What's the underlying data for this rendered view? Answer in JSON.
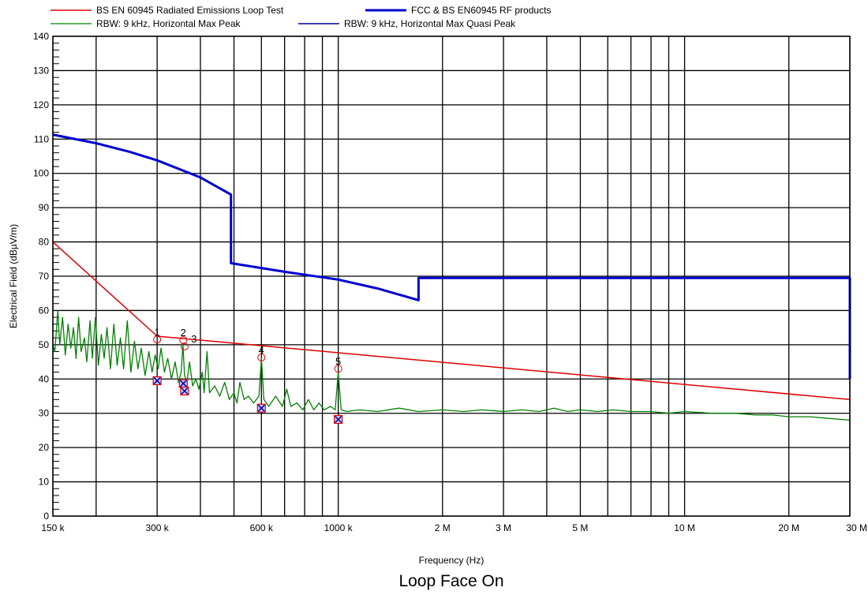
{
  "chart_data": {
    "type": "line",
    "title": "Loop Face On",
    "xlabel": "Frequency (Hz)",
    "ylabel": "Electrical Field (dBµV/m)",
    "xscale": "log",
    "xlim": [
      150000,
      30000000
    ],
    "ylim": [
      0,
      140
    ],
    "grid": true,
    "legend_position": "top",
    "x_ticks": [
      {
        "value": 150000,
        "label": "150 k"
      },
      {
        "value": 300000,
        "label": "300 k"
      },
      {
        "value": 600000,
        "label": "600 k"
      },
      {
        "value": 1000000,
        "label": "1000 k"
      },
      {
        "value": 2000000,
        "label": "2 M"
      },
      {
        "value": 3000000,
        "label": "3 M"
      },
      {
        "value": 5000000,
        "label": "5 M"
      },
      {
        "value": 10000000,
        "label": "10 M"
      },
      {
        "value": 20000000,
        "label": "20 M"
      },
      {
        "value": 30000000,
        "label": "30 M"
      }
    ],
    "x_gridlines": [
      150000,
      200000,
      300000,
      400000,
      500000,
      600000,
      700000,
      800000,
      900000,
      1000000,
      2000000,
      3000000,
      4000000,
      5000000,
      6000000,
      7000000,
      8000000,
      9000000,
      10000000,
      20000000,
      30000000
    ],
    "y_ticks": [
      0,
      10,
      20,
      30,
      40,
      50,
      60,
      70,
      80,
      90,
      100,
      110,
      120,
      130,
      140
    ],
    "series": [
      {
        "name": "BS EN 60945 Radiated Emissions Loop Test",
        "color": "#e00000",
        "width": 1.5,
        "points": [
          [
            150000,
            80
          ],
          [
            300000,
            52.5
          ],
          [
            30000000,
            34
          ]
        ]
      },
      {
        "name": "FCC & BS EN60945 RF products",
        "color": "#0000d0",
        "width": 3,
        "points": [
          [
            150000,
            111.3
          ],
          [
            200000,
            108.8
          ],
          [
            250000,
            106.3
          ],
          [
            300000,
            103.8
          ],
          [
            400000,
            98.8
          ],
          [
            490000,
            93.8
          ],
          [
            490000,
            73.8
          ],
          [
            700000,
            71.3
          ],
          [
            1000000,
            69.0
          ],
          [
            1300000,
            66.4
          ],
          [
            1705000,
            63.0
          ],
          [
            1705000,
            69.5
          ],
          [
            30000000,
            69.5
          ],
          [
            30000000,
            40
          ]
        ]
      },
      {
        "name": "RBW: 9 kHz, Horizontal Max Peak",
        "color": "#008000",
        "width": 1.3,
        "points": [
          [
            150000,
            50
          ],
          [
            152000,
            48
          ],
          [
            155000,
            60
          ],
          [
            157000,
            50
          ],
          [
            160000,
            58
          ],
          [
            163000,
            47
          ],
          [
            166000,
            56
          ],
          [
            169000,
            49
          ],
          [
            172000,
            55
          ],
          [
            175000,
            46
          ],
          [
            178000,
            58
          ],
          [
            181000,
            48
          ],
          [
            185000,
            52
          ],
          [
            188000,
            45
          ],
          [
            192000,
            57
          ],
          [
            195000,
            46
          ],
          [
            199000,
            58
          ],
          [
            203000,
            44
          ],
          [
            207000,
            53
          ],
          [
            211000,
            46
          ],
          [
            215000,
            55
          ],
          [
            220000,
            43
          ],
          [
            225000,
            56
          ],
          [
            230000,
            44
          ],
          [
            235000,
            52
          ],
          [
            240000,
            43
          ],
          [
            246000,
            57
          ],
          [
            252000,
            42
          ],
          [
            258000,
            51
          ],
          [
            264000,
            43
          ],
          [
            270000,
            49
          ],
          [
            277000,
            41
          ],
          [
            284000,
            48
          ],
          [
            290000,
            42
          ],
          [
            296000,
            47
          ],
          [
            302000,
            43
          ],
          [
            308000,
            49
          ],
          [
            315000,
            42
          ],
          [
            322000,
            46
          ],
          [
            330000,
            40
          ],
          [
            338000,
            45
          ],
          [
            346000,
            39
          ],
          [
            352000,
            42
          ],
          [
            356000,
            50
          ],
          [
            360000,
            41
          ],
          [
            366000,
            39
          ],
          [
            372000,
            45
          ],
          [
            380000,
            38
          ],
          [
            388000,
            40
          ],
          [
            396000,
            37
          ],
          [
            405000,
            42
          ],
          [
            410000,
            36
          ],
          [
            418000,
            48
          ],
          [
            425000,
            36
          ],
          [
            440000,
            38
          ],
          [
            455000,
            35
          ],
          [
            470000,
            39
          ],
          [
            485000,
            34
          ],
          [
            500000,
            36
          ],
          [
            510000,
            33
          ],
          [
            520000,
            39
          ],
          [
            535000,
            34
          ],
          [
            550000,
            35
          ],
          [
            570000,
            33
          ],
          [
            590000,
            35
          ],
          [
            600000,
            46
          ],
          [
            610000,
            34
          ],
          [
            630000,
            32
          ],
          [
            660000,
            35
          ],
          [
            690000,
            32
          ],
          [
            710000,
            37
          ],
          [
            730000,
            32
          ],
          [
            760000,
            33
          ],
          [
            790000,
            31
          ],
          [
            820000,
            34
          ],
          [
            850000,
            31
          ],
          [
            880000,
            33
          ],
          [
            910000,
            31
          ],
          [
            950000,
            32
          ],
          [
            980000,
            31
          ],
          [
            1000000,
            42
          ],
          [
            1020000,
            31
          ],
          [
            1060000,
            30.5
          ],
          [
            1150000,
            31
          ],
          [
            1300000,
            30.5
          ],
          [
            1500000,
            31.5
          ],
          [
            1700000,
            30.5
          ],
          [
            2000000,
            31
          ],
          [
            2300000,
            30.5
          ],
          [
            2600000,
            31
          ],
          [
            3000000,
            30.5
          ],
          [
            3400000,
            31
          ],
          [
            3800000,
            30.5
          ],
          [
            4200000,
            31.5
          ],
          [
            4600000,
            30.5
          ],
          [
            5000000,
            31
          ],
          [
            5600000,
            30.5
          ],
          [
            6200000,
            31
          ],
          [
            7000000,
            30.5
          ],
          [
            8000000,
            30.5
          ],
          [
            9000000,
            30
          ],
          [
            10000000,
            30.5
          ],
          [
            12000000,
            30
          ],
          [
            14000000,
            30
          ],
          [
            16000000,
            29.5
          ],
          [
            18000000,
            29.5
          ],
          [
            20000000,
            29
          ],
          [
            23000000,
            29
          ],
          [
            26000000,
            28.5
          ],
          [
            30000000,
            28
          ]
        ]
      }
    ],
    "quasi_peak_legend": {
      "name": "RBW: 9 kHz, Horizontal Max Quasi Peak",
      "color": "#0000a0",
      "width": 1.5
    },
    "peak_markers": [
      {
        "label": "1",
        "freq": 300000,
        "peak": 51.5,
        "qp": 39.5
      },
      {
        "label": "2",
        "freq": 357000,
        "peak": 51.3,
        "qp": 38.7
      },
      {
        "label": "3",
        "freq": 360000,
        "peak": 49.5,
        "qp": 36.5
      },
      {
        "label": "4",
        "freq": 600000,
        "peak": 46.3,
        "qp": 31.5
      },
      {
        "label": "5",
        "freq": 1000000,
        "peak": 43.0,
        "qp": 28.2
      }
    ]
  }
}
